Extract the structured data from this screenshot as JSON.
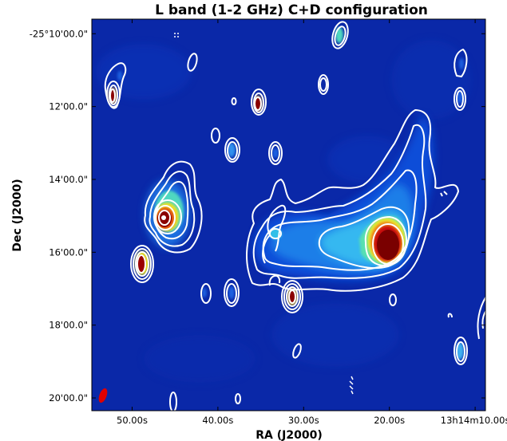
{
  "chart_data": {
    "type": "heatmap",
    "title": "L band (1-2 GHz) C+D configuration",
    "xlabel": "RA (J2000)",
    "ylabel": "Dec (J2000)",
    "x_ticks": [
      {
        "label": "50.00s",
        "value": 50
      },
      {
        "label": "40.00s",
        "value": 40
      },
      {
        "label": "30.00s",
        "value": 30
      },
      {
        "label": "20.00s",
        "value": 20
      },
      {
        "label": "13h14m10.00s",
        "value": 10
      }
    ],
    "y_ticks": [
      {
        "label": "-25°10'00.0\"",
        "value": 10
      },
      {
        "label": "12'00.0\"",
        "value": 12
      },
      {
        "label": "14'00.0\"",
        "value": 14
      },
      {
        "label": "16'00.0\"",
        "value": 16
      },
      {
        "label": "18'00.0\"",
        "value": 18
      },
      {
        "label": "20'00.0\"",
        "value": 20
      }
    ],
    "ra_range_s": [
      54.7,
      8.8
    ],
    "dec_range_arcmin": [
      9.6,
      20.35
    ],
    "colormap": "jet",
    "contours": "white",
    "background_color": "#0a28a8",
    "sources": [
      {
        "name": "main-extended-source",
        "ra_s": 20.0,
        "dec_arcmin": 15.85,
        "peak": 1.0
      },
      {
        "name": "source-left-bright",
        "ra_s": 45.0,
        "dec_arcmin": 15.15,
        "peak": 1.0
      },
      {
        "name": "source-left-lower",
        "ra_s": 48.7,
        "dec_arcmin": 16.35,
        "peak": 1.0
      },
      {
        "name": "source-top-left",
        "ra_s": 52.2,
        "dec_arcmin": 11.65,
        "peak": 1.0
      },
      {
        "name": "source-top-middle",
        "ra_s": 33.7,
        "dec_arcmin": 11.9,
        "peak": 1.0
      },
      {
        "name": "source-middle-lower",
        "ra_s": 30.3,
        "dec_arcmin": 17.3,
        "peak": 1.0
      },
      {
        "name": "source-top-right",
        "ra_s": 23.8,
        "dec_arcmin": 10.05,
        "peak": 0.45
      },
      {
        "name": "source-right-lower",
        "ra_s": 10.0,
        "dec_arcmin": 18.7,
        "peak": 0.4
      }
    ]
  }
}
